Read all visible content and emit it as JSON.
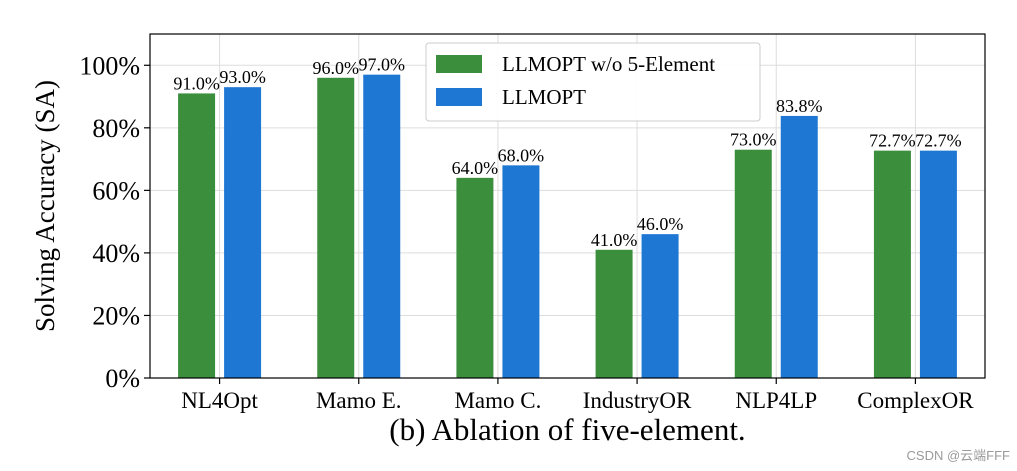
{
  "chart_data": {
    "type": "bar",
    "title": "(b) Ablation of five-element.",
    "xlabel": "",
    "ylabel": "Solving Accuracy (SA)",
    "ylim": [
      0,
      110
    ],
    "yticks": [
      0,
      20,
      40,
      60,
      80,
      100
    ],
    "ytick_labels": [
      "0%",
      "20%",
      "40%",
      "60%",
      "80%",
      "100%"
    ],
    "grid": true,
    "legend_position": "top-center",
    "categories": [
      "NL4Opt",
      "Mamo E.",
      "Mamo C.",
      "IndustryOR",
      "NLP4LP",
      "ComplexOR"
    ],
    "series": [
      {
        "name": "LLMOPT w/o 5-Element",
        "color": "#3a8e3c",
        "values": [
          91.0,
          96.0,
          64.0,
          41.0,
          73.0,
          72.7
        ],
        "labels": [
          "91.0%",
          "96.0%",
          "64.0%",
          "41.0%",
          "73.0%",
          "72.7%"
        ]
      },
      {
        "name": "LLMOPT",
        "color": "#1f77d4",
        "values": [
          93.0,
          97.0,
          68.0,
          46.0,
          83.8,
          72.7
        ],
        "labels": [
          "93.0%",
          "97.0%",
          "68.0%",
          "46.0%",
          "83.8%",
          "72.7%"
        ]
      }
    ]
  },
  "watermark": "CSDN @云端FFF"
}
